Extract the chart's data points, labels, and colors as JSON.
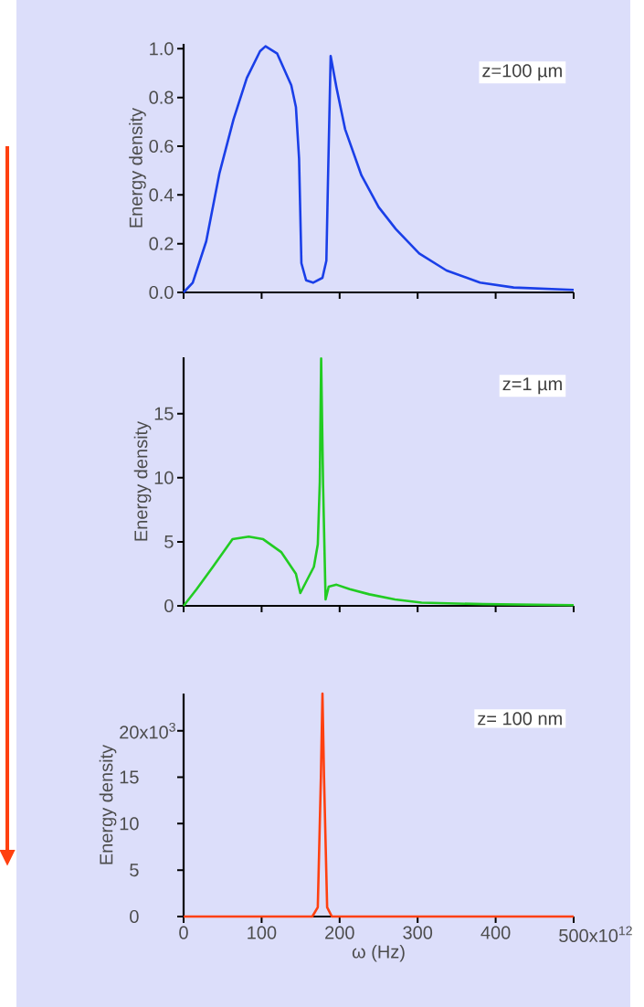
{
  "chart_data": [
    {
      "type": "line",
      "ylabel": "Energy density",
      "color": "#1a3fe8",
      "xlim": [
        0,
        500
      ],
      "ylim": [
        0,
        1.02
      ],
      "xticks": [
        0,
        100,
        200,
        300,
        400,
        500
      ],
      "yticks": [
        {
          "value": 0,
          "label": "0.0"
        },
        0.2,
        0.4,
        0.6,
        0.8,
        {
          "value": 1,
          "label": "1.0"
        }
      ],
      "tick_labels": "y",
      "annotations": [
        "z=100 µm"
      ],
      "x": [
        0,
        11.7,
        29,
        46,
        64,
        81,
        98,
        105,
        120,
        138,
        144,
        148,
        151,
        157,
        166,
        178,
        183,
        185,
        188.5,
        196,
        207,
        228,
        250,
        272,
        302,
        337,
        380,
        423,
        500
      ],
      "values": [
        0,
        0.04,
        0.21,
        0.49,
        0.71,
        0.88,
        0.99,
        1.01,
        0.98,
        0.85,
        0.76,
        0.55,
        0.12,
        0.05,
        0.04,
        0.06,
        0.13,
        0.45,
        0.97,
        0.84,
        0.67,
        0.48,
        0.35,
        0.26,
        0.16,
        0.09,
        0.04,
        0.02,
        0.01
      ]
    },
    {
      "type": "line",
      "ylabel": "Energy density",
      "color": "#22cc22",
      "xlim": [
        0,
        500
      ],
      "ylim": [
        0,
        19.4
      ],
      "xticks": [
        0,
        100,
        200,
        300,
        400,
        500
      ],
      "yticks": [
        0,
        5,
        10,
        15
      ],
      "tick_labels": "y",
      "annotations": [
        "z=1 µm"
      ],
      "x": [
        0,
        16.7,
        37.6,
        62.7,
        83.5,
        102,
        125,
        144,
        149.6,
        167,
        172,
        174.6,
        176.3,
        178.8,
        182,
        186,
        196,
        213,
        238,
        271,
        305,
        384,
        500
      ],
      "values": [
        0,
        1.3,
        3.05,
        5.2,
        5.4,
        5.2,
        4.2,
        2.5,
        1.0,
        3.05,
        4.8,
        9.7,
        19.3,
        9.4,
        0.5,
        1.5,
        1.65,
        1.3,
        0.9,
        0.5,
        0.25,
        0.13,
        0.05
      ]
    },
    {
      "type": "line",
      "ylabel": "Energy density",
      "xlabel": "ω (Hz)",
      "color": "#ff4010",
      "xlim": [
        0,
        500
      ],
      "ylim": [
        0,
        24
      ],
      "xticks": [
        0,
        100,
        200,
        300,
        400,
        500
      ],
      "yticks": [
        0,
        5,
        10,
        15,
        20
      ],
      "annotations": [
        "z= 100 nm",
        "x10$^{12}$",
        "x10$^{3}$"
      ],
      "x": [
        0,
        100,
        165,
        172,
        176,
        178,
        180,
        184,
        190,
        300,
        500
      ],
      "values": [
        0,
        0,
        0,
        1,
        15,
        24,
        15,
        1,
        0,
        0,
        0
      ]
    }
  ]
}
